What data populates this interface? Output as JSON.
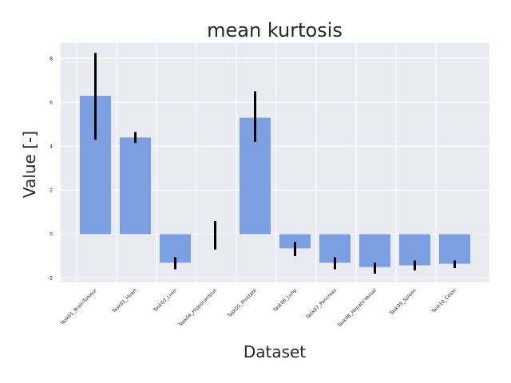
{
  "chart_data": {
    "type": "bar",
    "title": "mean kurtosis",
    "xlabel": "Dataset",
    "ylabel": "Value [-]",
    "categories": [
      "Task01_BrainTumour",
      "Task02_Heart",
      "Task03_Liver",
      "Task04_Hippocampus",
      "Task05_Prostate",
      "Task06_Lung",
      "Task07_Pancreas",
      "Task08_HepaticVessel",
      "Task09_Spleen",
      "Task10_Colon"
    ],
    "values": [
      6.3,
      4.4,
      -1.3,
      0.0,
      5.3,
      -0.65,
      -1.3,
      -1.5,
      -1.42,
      -1.35
    ],
    "error_low": [
      4.3,
      4.15,
      -1.6,
      -0.7,
      4.2,
      -1.0,
      -1.6,
      -1.8,
      -1.65,
      -1.55
    ],
    "error_high": [
      8.25,
      4.65,
      -1.05,
      0.6,
      6.5,
      -0.35,
      -1.05,
      -1.3,
      -1.2,
      -1.2
    ],
    "yticks": [
      -2,
      0,
      2,
      4,
      6,
      8
    ],
    "ylim": [
      -2.2,
      8.7
    ],
    "grid": true,
    "colors": {
      "bar": "#7b9fe0",
      "error": "#000000",
      "plot_bg": "#eaeaf2",
      "grid": "#ffffff"
    }
  }
}
